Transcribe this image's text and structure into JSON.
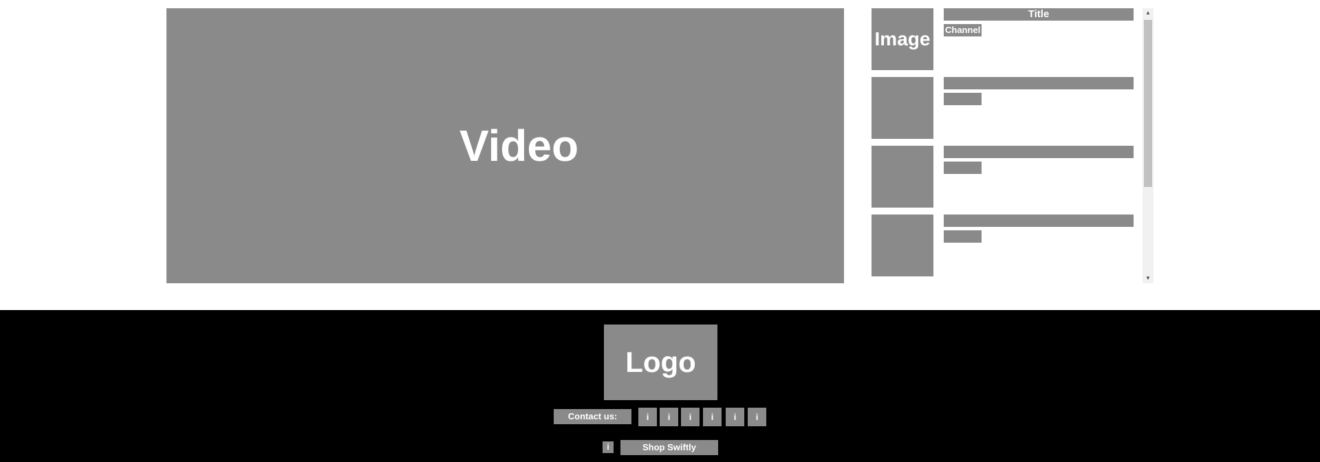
{
  "main": {
    "video_label": "Video",
    "playlist": {
      "items": [
        {
          "thumb_label": "Image",
          "title": "Title",
          "channel": "Channel"
        },
        {
          "thumb_label": "",
          "title": "",
          "channel": ""
        },
        {
          "thumb_label": "",
          "title": "",
          "channel": ""
        },
        {
          "thumb_label": "",
          "title": "",
          "channel": ""
        }
      ],
      "scrollbar": {
        "up_glyph": "▲",
        "down_glyph": "▼"
      }
    }
  },
  "footer": {
    "logo_label": "Logo",
    "contact_label": "Contact us:",
    "social_icons": [
      "i",
      "i",
      "i",
      "i",
      "i",
      "i"
    ],
    "info_icon": "i",
    "shop_label": "Shop Swiftly"
  }
}
